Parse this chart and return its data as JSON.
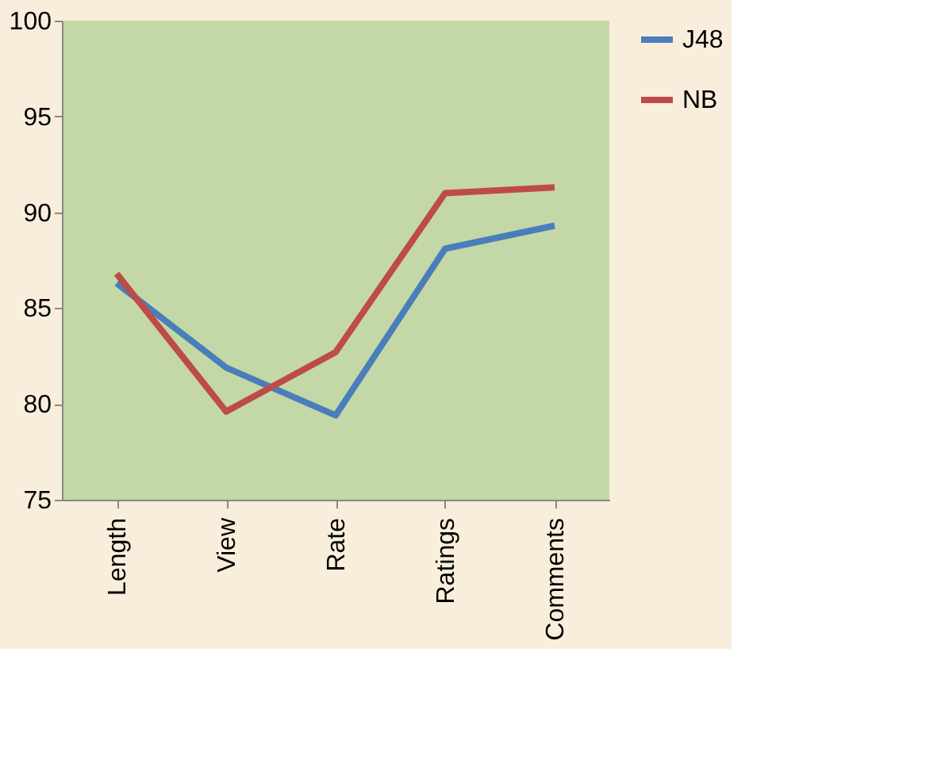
{
  "chart_data": {
    "type": "line",
    "categories": [
      "Length",
      "View",
      "Rate",
      "Ratings",
      "Comments"
    ],
    "series": [
      {
        "name": "J48",
        "color": "#4a7ebb",
        "values": [
          86.3,
          81.9,
          79.4,
          88.1,
          89.3
        ]
      },
      {
        "name": "NB",
        "color": "#be4b48",
        "values": [
          86.8,
          79.6,
          82.7,
          91.0,
          91.3
        ]
      }
    ],
    "ylim": [
      75,
      100
    ],
    "yticks": [
      75,
      80,
      85,
      90,
      95,
      100
    ],
    "grid": false,
    "legend": "right",
    "marker": "none",
    "line_style": "solid"
  }
}
